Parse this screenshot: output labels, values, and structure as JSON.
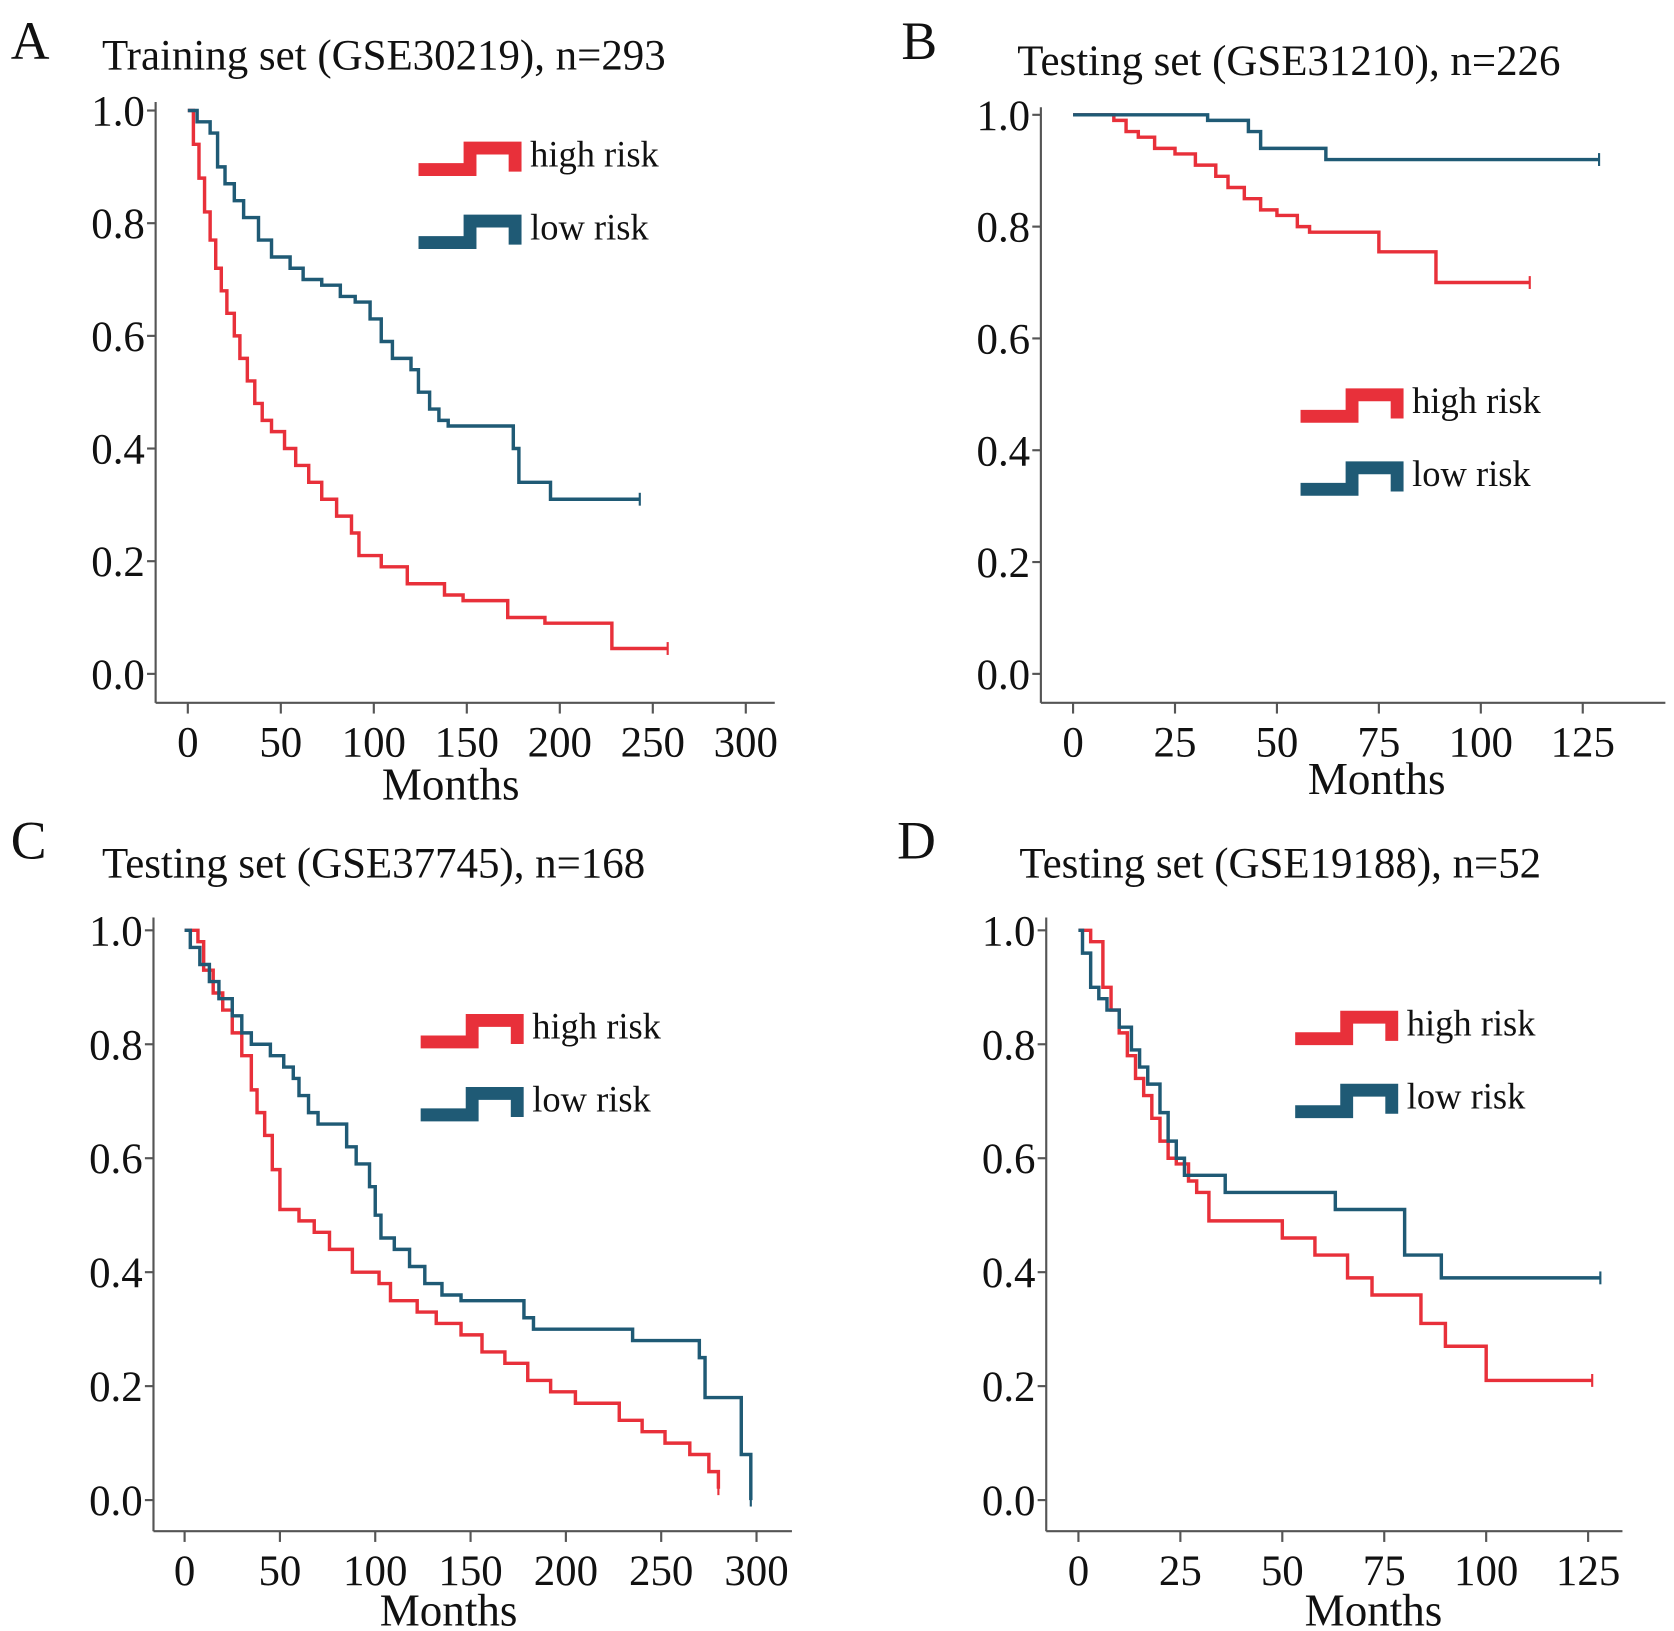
{
  "colors": {
    "high_risk": "#e8303a",
    "low_risk": "#1f5a75"
  },
  "chart_data": [
    {
      "panel": "A",
      "type": "line",
      "title": "Training set  (GSE30219), n=293",
      "xlabel": "Months",
      "ylabel": "",
      "xlim": [
        0,
        300
      ],
      "ylim": [
        0,
        1
      ],
      "xticks": [
        "0",
        "50",
        "100",
        "150",
        "200",
        "250",
        "300"
      ],
      "yticks": [
        "0.0",
        "0.2",
        "0.4",
        "0.6",
        "0.8",
        "1.0"
      ],
      "legend": {
        "placement": "top-right",
        "entries": [
          "high risk",
          "low risk"
        ]
      },
      "series": [
        {
          "name": "high risk",
          "step": [
            [
              0,
              1.0
            ],
            [
              3,
              0.94
            ],
            [
              6,
              0.88
            ],
            [
              9,
              0.82
            ],
            [
              12,
              0.77
            ],
            [
              15,
              0.72
            ],
            [
              18,
              0.68
            ],
            [
              21,
              0.64
            ],
            [
              25,
              0.6
            ],
            [
              28,
              0.56
            ],
            [
              32,
              0.52
            ],
            [
              36,
              0.48
            ],
            [
              40,
              0.45
            ],
            [
              45,
              0.43
            ],
            [
              52,
              0.4
            ],
            [
              58,
              0.37
            ],
            [
              65,
              0.34
            ],
            [
              72,
              0.31
            ],
            [
              80,
              0.28
            ],
            [
              88,
              0.25
            ],
            [
              92,
              0.21
            ],
            [
              104,
              0.19
            ],
            [
              118,
              0.16
            ],
            [
              138,
              0.14
            ],
            [
              148,
              0.13
            ],
            [
              172,
              0.1
            ],
            [
              192,
              0.09
            ],
            [
              228,
              0.045
            ],
            [
              258,
              0.045
            ]
          ]
        },
        {
          "name": "low risk",
          "step": [
            [
              0,
              1.0
            ],
            [
              5,
              0.98
            ],
            [
              12,
              0.96
            ],
            [
              16,
              0.9
            ],
            [
              20,
              0.87
            ],
            [
              25,
              0.84
            ],
            [
              30,
              0.81
            ],
            [
              38,
              0.77
            ],
            [
              45,
              0.74
            ],
            [
              55,
              0.72
            ],
            [
              62,
              0.7
            ],
            [
              72,
              0.69
            ],
            [
              82,
              0.67
            ],
            [
              90,
              0.66
            ],
            [
              98,
              0.63
            ],
            [
              104,
              0.59
            ],
            [
              110,
              0.56
            ],
            [
              120,
              0.54
            ],
            [
              124,
              0.5
            ],
            [
              130,
              0.47
            ],
            [
              135,
              0.45
            ],
            [
              140,
              0.44
            ],
            [
              175,
              0.4
            ],
            [
              178,
              0.34
            ],
            [
              195,
              0.31
            ],
            [
              243,
              0.31
            ]
          ]
        }
      ]
    },
    {
      "panel": "B",
      "type": "line",
      "title": "Testing set (GSE31210), n=226",
      "xlabel": "Months",
      "ylabel": "",
      "xlim": [
        0,
        140
      ],
      "ylim": [
        0,
        1
      ],
      "xticks": [
        "0",
        "25",
        "50",
        "75",
        "100",
        "125"
      ],
      "yticks": [
        "0.0",
        "0.2",
        "0.4",
        "0.6",
        "0.8",
        "1.0"
      ],
      "legend": {
        "placement": "center-right",
        "entries": [
          "high risk",
          "low risk"
        ]
      },
      "series": [
        {
          "name": "high risk",
          "step": [
            [
              0,
              1.0
            ],
            [
              10,
              0.99
            ],
            [
              13,
              0.97
            ],
            [
              16,
              0.96
            ],
            [
              20,
              0.94
            ],
            [
              25,
              0.93
            ],
            [
              30,
              0.91
            ],
            [
              35,
              0.89
            ],
            [
              38,
              0.87
            ],
            [
              42,
              0.85
            ],
            [
              46,
              0.83
            ],
            [
              50,
              0.82
            ],
            [
              55,
              0.8
            ],
            [
              58,
              0.79
            ],
            [
              75,
              0.755
            ],
            [
              89,
              0.7
            ],
            [
              112,
              0.7
            ]
          ]
        },
        {
          "name": "low risk",
          "step": [
            [
              0,
              1.0
            ],
            [
              33,
              0.99
            ],
            [
              43,
              0.97
            ],
            [
              46,
              0.94
            ],
            [
              62,
              0.92
            ],
            [
              129,
              0.92
            ]
          ]
        }
      ]
    },
    {
      "panel": "C",
      "type": "line",
      "title": "Testing set (GSE37745), n=168",
      "xlabel": "Months",
      "ylabel": "",
      "xlim": [
        0,
        300
      ],
      "ylim": [
        0,
        1
      ],
      "xticks": [
        "0",
        "50",
        "100",
        "150",
        "200",
        "250",
        "300"
      ],
      "yticks": [
        "0.0",
        "0.2",
        "0.4",
        "0.6",
        "0.8",
        "1.0"
      ],
      "legend": {
        "placement": "top-right",
        "entries": [
          "high risk",
          "low risk"
        ]
      },
      "series": [
        {
          "name": "high risk",
          "step": [
            [
              0,
              1.0
            ],
            [
              7,
              0.98
            ],
            [
              10,
              0.93
            ],
            [
              15,
              0.89
            ],
            [
              20,
              0.86
            ],
            [
              25,
              0.82
            ],
            [
              30,
              0.78
            ],
            [
              35,
              0.72
            ],
            [
              38,
              0.68
            ],
            [
              42,
              0.64
            ],
            [
              46,
              0.58
            ],
            [
              50,
              0.51
            ],
            [
              60,
              0.49
            ],
            [
              68,
              0.47
            ],
            [
              76,
              0.44
            ],
            [
              88,
              0.4
            ],
            [
              102,
              0.38
            ],
            [
              108,
              0.35
            ],
            [
              122,
              0.33
            ],
            [
              132,
              0.31
            ],
            [
              145,
              0.29
            ],
            [
              156,
              0.26
            ],
            [
              168,
              0.24
            ],
            [
              180,
              0.21
            ],
            [
              192,
              0.19
            ],
            [
              205,
              0.17
            ],
            [
              228,
              0.14
            ],
            [
              240,
              0.12
            ],
            [
              252,
              0.1
            ],
            [
              265,
              0.08
            ],
            [
              275,
              0.05
            ],
            [
              280,
              0.02
            ]
          ]
        },
        {
          "name": "low risk",
          "step": [
            [
              0,
              1.0
            ],
            [
              3,
              0.97
            ],
            [
              8,
              0.94
            ],
            [
              13,
              0.91
            ],
            [
              18,
              0.88
            ],
            [
              25,
              0.85
            ],
            [
              30,
              0.82
            ],
            [
              35,
              0.8
            ],
            [
              45,
              0.78
            ],
            [
              52,
              0.76
            ],
            [
              57,
              0.74
            ],
            [
              60,
              0.71
            ],
            [
              65,
              0.68
            ],
            [
              70,
              0.66
            ],
            [
              85,
              0.62
            ],
            [
              90,
              0.59
            ],
            [
              97,
              0.55
            ],
            [
              100,
              0.5
            ],
            [
              103,
              0.46
            ],
            [
              110,
              0.44
            ],
            [
              118,
              0.41
            ],
            [
              126,
              0.38
            ],
            [
              135,
              0.36
            ],
            [
              145,
              0.35
            ],
            [
              178,
              0.32
            ],
            [
              183,
              0.3
            ],
            [
              235,
              0.28
            ],
            [
              270,
              0.25
            ],
            [
              273,
              0.18
            ],
            [
              292,
              0.08
            ],
            [
              297,
              0.0
            ]
          ]
        }
      ]
    },
    {
      "panel": "D",
      "type": "line",
      "title": "Testing set (GSE19188), n=52",
      "xlabel": "Months",
      "ylabel": "",
      "xlim": [
        0,
        140
      ],
      "ylim": [
        0,
        1
      ],
      "xticks": [
        "0",
        "25",
        "50",
        "75",
        "100",
        "125"
      ],
      "yticks": [
        "0.0",
        "0.2",
        "0.4",
        "0.6",
        "0.8",
        "1.0"
      ],
      "legend": {
        "placement": "top-right",
        "entries": [
          "high risk",
          "low risk"
        ]
      },
      "series": [
        {
          "name": "high risk",
          "step": [
            [
              0,
              1.0
            ],
            [
              3,
              0.98
            ],
            [
              6,
              0.9
            ],
            [
              8,
              0.86
            ],
            [
              10,
              0.82
            ],
            [
              12,
              0.78
            ],
            [
              14,
              0.74
            ],
            [
              16,
              0.71
            ],
            [
              18,
              0.67
            ],
            [
              20,
              0.63
            ],
            [
              22,
              0.6
            ],
            [
              24,
              0.59
            ],
            [
              27,
              0.56
            ],
            [
              29,
              0.54
            ],
            [
              32,
              0.49
            ],
            [
              50,
              0.46
            ],
            [
              58,
              0.43
            ],
            [
              66,
              0.39
            ],
            [
              72,
              0.36
            ],
            [
              84,
              0.31
            ],
            [
              90,
              0.27
            ],
            [
              100,
              0.21
            ],
            [
              126,
              0.21
            ]
          ]
        },
        {
          "name": "low risk",
          "step": [
            [
              0,
              1.0
            ],
            [
              1,
              0.96
            ],
            [
              3,
              0.9
            ],
            [
              5,
              0.88
            ],
            [
              7,
              0.86
            ],
            [
              10,
              0.83
            ],
            [
              13,
              0.79
            ],
            [
              15,
              0.76
            ],
            [
              17,
              0.73
            ],
            [
              20,
              0.68
            ],
            [
              22,
              0.63
            ],
            [
              24,
              0.6
            ],
            [
              26,
              0.57
            ],
            [
              36,
              0.54
            ],
            [
              63,
              0.51
            ],
            [
              80,
              0.43
            ],
            [
              89,
              0.39
            ],
            [
              128,
              0.39
            ]
          ]
        }
      ]
    }
  ]
}
